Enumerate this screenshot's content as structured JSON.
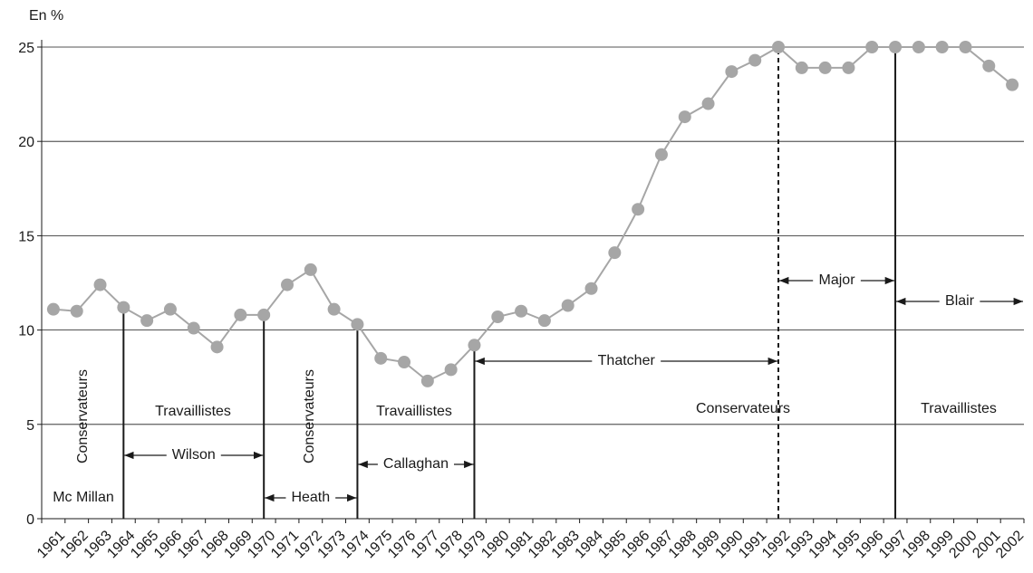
{
  "chart_data": {
    "type": "line",
    "y_label": "En %",
    "categories": [
      "1961",
      "1962",
      "1963",
      "1964",
      "1965",
      "1966",
      "1967",
      "1968",
      "1969",
      "1970",
      "1971",
      "1972",
      "1973",
      "1974",
      "1975",
      "1976",
      "1977",
      "1978",
      "1979",
      "1980",
      "1981",
      "1982",
      "1983",
      "1984",
      "1985",
      "1986",
      "1987",
      "1988",
      "1989",
      "1990",
      "1991",
      "1992",
      "1993",
      "1994",
      "1995",
      "1996",
      "1997",
      "1998",
      "1999",
      "2000",
      "2001",
      "2002"
    ],
    "values": [
      11.1,
      11.0,
      12.4,
      11.2,
      10.5,
      11.1,
      10.1,
      9.1,
      10.8,
      10.8,
      12.4,
      13.2,
      11.1,
      10.3,
      8.5,
      8.3,
      7.3,
      7.9,
      9.2,
      10.7,
      11.0,
      10.5,
      11.3,
      12.2,
      14.1,
      16.4,
      19.3,
      21.3,
      22.0,
      23.7,
      24.3,
      25.0,
      23.9,
      23.9,
      23.9,
      25.0,
      25.0,
      25.0,
      25.0,
      25.0,
      24.0,
      23.0
    ],
    "color": "#a6a6a6",
    "ylim": [
      0,
      25
    ],
    "yticks": [
      0,
      5,
      10,
      15,
      20,
      25
    ],
    "grid": true,
    "parties": [
      "Conservateurs",
      "Travaillistes",
      "Conservateurs",
      "Travaillistes",
      "Conservateurs",
      "Travaillistes"
    ],
    "leaders": [
      "Mc Millan",
      "Wilson",
      "Heath",
      "Callaghan",
      "Thatcher",
      "Major",
      "Blair"
    ]
  }
}
